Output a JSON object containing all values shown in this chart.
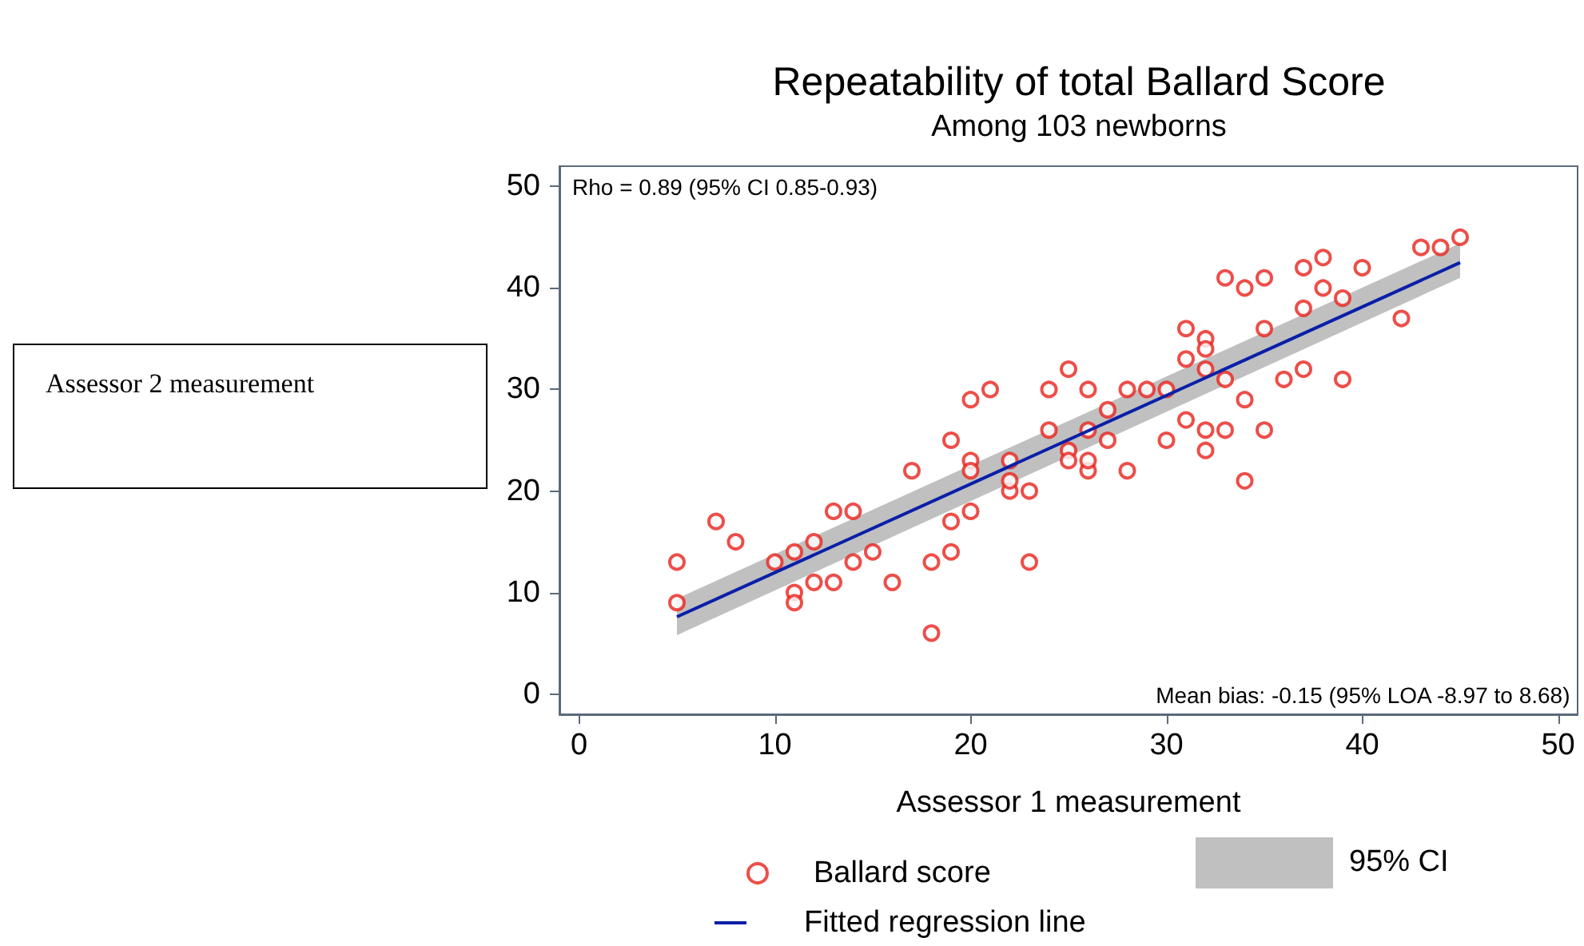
{
  "chart_data": {
    "type": "scatter",
    "title": "Repeatability of total Ballard Score",
    "subtitle": "Among 103 newborns",
    "xlabel": "Assessor 1 measurement",
    "annotations": [
      "Rho = 0.89 (95% CI 0.85-0.93)",
      "Mean bias: -0.15 (95% LOA -8.97 to 8.68)",
      "Assessor 2 measurement",
      "95% CI"
    ],
    "xlim": [
      -1,
      51
    ],
    "ylim": [
      -2,
      52
    ],
    "xticks": [
      0,
      10,
      20,
      30,
      40,
      50
    ],
    "yticks": [
      0,
      10,
      20,
      30,
      40,
      50
    ],
    "grid": false,
    "legend": "bottom",
    "marker": "circle",
    "series": [
      {
        "name": "Ballard score",
        "color": "#e8221c",
        "x": [
          5,
          5,
          7,
          8,
          10,
          11,
          11,
          11,
          12,
          12,
          13,
          13,
          14,
          14,
          15,
          16,
          17,
          18,
          18,
          19,
          19,
          19,
          20,
          20,
          20,
          20,
          21,
          22,
          22,
          22,
          23,
          23,
          24,
          24,
          25,
          25,
          25,
          26,
          26,
          26,
          26,
          27,
          27,
          28,
          28,
          29,
          30,
          30,
          31,
          31,
          31,
          32,
          32,
          32,
          32,
          32,
          33,
          33,
          33,
          34,
          34,
          34,
          35,
          35,
          35,
          36,
          37,
          37,
          37,
          38,
          38,
          39,
          39,
          40,
          42,
          43,
          44,
          45
        ],
        "values": [
          13,
          9,
          17,
          15,
          13,
          14,
          10,
          9,
          15,
          11,
          18,
          11,
          18,
          13,
          14,
          11,
          22,
          13,
          6,
          25,
          17,
          14,
          29,
          23,
          22,
          18,
          30,
          20,
          21,
          23,
          20,
          13,
          30,
          26,
          32,
          24,
          23,
          30,
          22,
          23,
          26,
          25,
          28,
          30,
          22,
          30,
          30,
          25,
          36,
          33,
          27,
          35,
          34,
          32,
          24,
          26,
          41,
          26,
          31,
          40,
          21,
          29,
          41,
          36,
          26,
          31,
          42,
          38,
          32,
          43,
          40,
          39,
          31,
          42,
          37,
          44,
          44,
          45
        ]
      },
      {
        "type": "line",
        "name": "Fitted regression line",
        "color": "#0a1fa8",
        "x": [
          5,
          45
        ],
        "values": [
          7.6,
          42.5
        ],
        "lower": [
          5.8,
          41.0
        ],
        "upper": [
          9.4,
          44.4
        ],
        "marker": "none"
      }
    ]
  }
}
